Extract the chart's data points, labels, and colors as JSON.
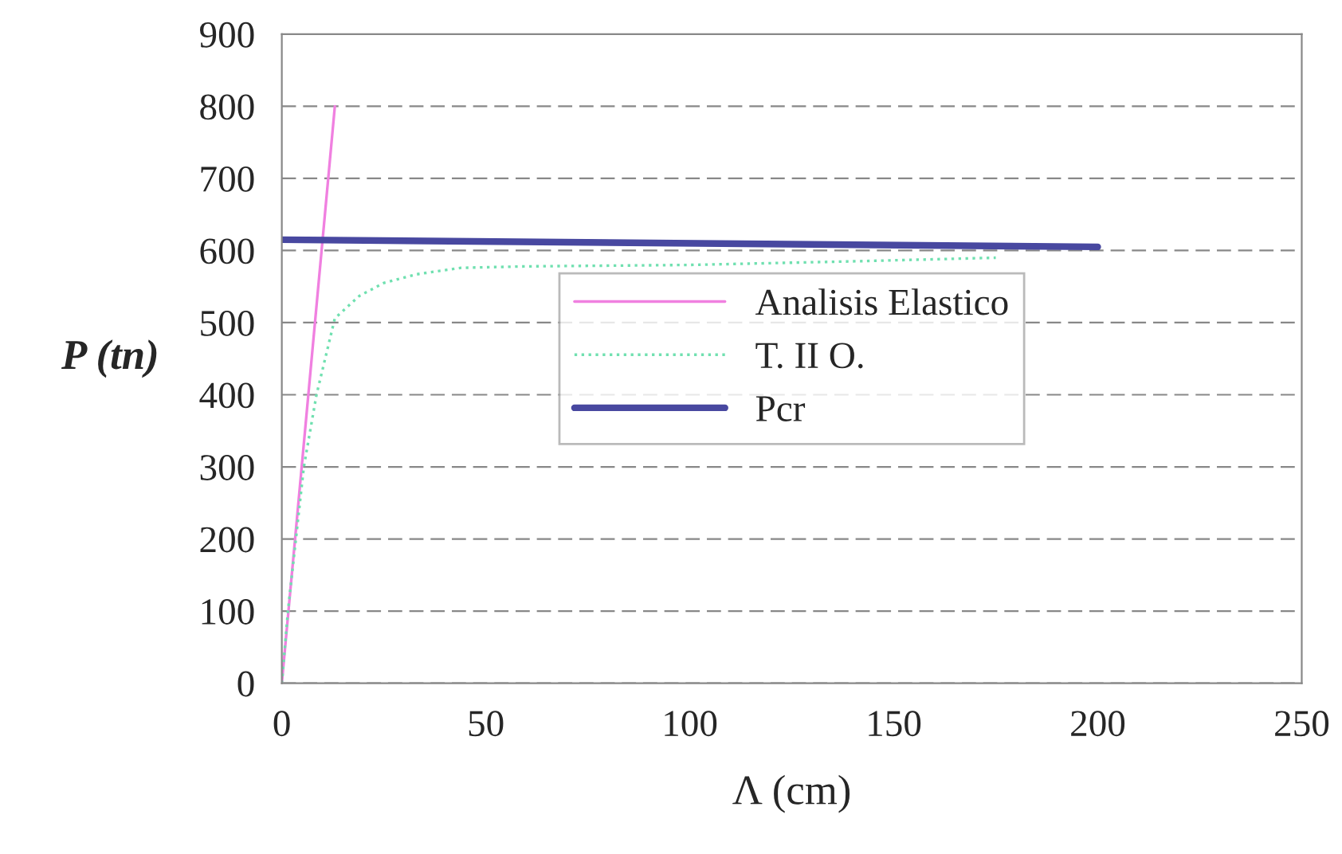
{
  "chart_data": {
    "type": "line",
    "xlabel": "Λ (cm)",
    "ylabel": "P (tn)",
    "xlim": [
      0,
      250
    ],
    "ylim": [
      0,
      900
    ],
    "xticks": [
      0,
      50,
      100,
      150,
      200,
      250
    ],
    "yticks": [
      0,
      100,
      200,
      300,
      400,
      500,
      600,
      700,
      800,
      900
    ],
    "grid": "y",
    "legend": "center",
    "series": [
      {
        "name": "Analisis Elastico",
        "color": "#f080e0",
        "line_style": "solid",
        "x": [
          0,
          13
        ],
        "values": [
          0,
          800
        ]
      },
      {
        "name": "T. II O.",
        "color": "#70e0b0",
        "line_style": "dotted",
        "x": [
          0,
          1.5,
          5.4,
          8.5,
          13,
          19,
          25,
          33,
          44,
          60,
          100,
          140,
          175
        ],
        "values": [
          0,
          100,
          300,
          400,
          506,
          537,
          555,
          567,
          576,
          578,
          580,
          585,
          590
        ]
      },
      {
        "name": "Pcr",
        "color": "#4848a0",
        "line_style": "solid",
        "x": [
          0,
          200
        ],
        "values": [
          615,
          605
        ]
      }
    ]
  }
}
